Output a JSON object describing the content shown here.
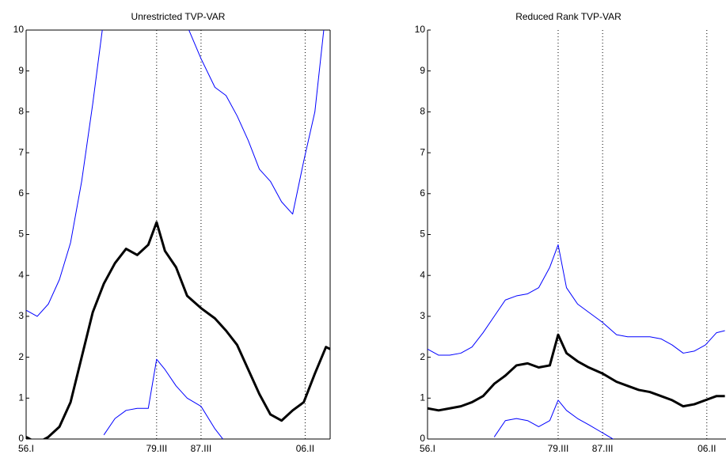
{
  "chart_data": [
    {
      "type": "line",
      "title": "Unrestricted TVP-VAR",
      "x": [
        1956,
        1958,
        1960,
        1962,
        1964,
        1966,
        1968,
        1970,
        1972,
        1974,
        1976,
        1978,
        1979.5,
        1981,
        1983,
        1985,
        1987.5,
        1990,
        1992,
        1994,
        1996,
        1998,
        2000,
        2002,
        2004,
        2006,
        2008,
        2010,
        2010.75
      ],
      "xlim": [
        1956,
        2010.75
      ],
      "xticks": [
        {
          "value": 1956,
          "label": "56.I"
        },
        {
          "value": 1979.5,
          "label": "79.III"
        },
        {
          "value": 1987.5,
          "label": "87.III"
        },
        {
          "value": 2006.25,
          "label": "06.II"
        }
      ],
      "ylim": [
        0,
        10
      ],
      "yticks": [
        0,
        1,
        2,
        3,
        4,
        5,
        6,
        7,
        8,
        9,
        10
      ],
      "series": [
        {
          "color": "#0000ff",
          "linewidth": 1,
          "values": [
            3.15,
            3.0,
            3.3,
            3.9,
            4.8,
            6.3,
            8.2,
            10.3,
            null,
            null,
            null,
            null,
            null,
            null,
            null,
            10.1,
            9.3,
            8.6,
            8.4,
            7.9,
            7.3,
            6.6,
            6.3,
            5.8,
            5.5,
            6.8,
            8.0,
            10.5,
            null
          ]
        },
        {
          "color": "#000000",
          "linewidth": 3,
          "values": [
            0.05,
            -0.1,
            0.05,
            0.3,
            0.9,
            2.0,
            3.1,
            3.8,
            4.3,
            4.65,
            4.5,
            4.75,
            5.3,
            4.6,
            4.2,
            3.5,
            3.2,
            2.95,
            2.65,
            2.3,
            1.7,
            1.1,
            0.6,
            0.45,
            0.7,
            0.9,
            1.6,
            2.25,
            2.2
          ]
        },
        {
          "color": "#0000ff",
          "linewidth": 1,
          "values": [
            null,
            null,
            null,
            null,
            null,
            null,
            null,
            0.1,
            0.5,
            0.7,
            0.75,
            0.75,
            1.95,
            1.7,
            1.3,
            1.0,
            0.8,
            0.25,
            -0.1,
            null,
            null,
            null,
            null,
            null,
            null,
            null,
            null,
            null,
            null
          ]
        }
      ]
    },
    {
      "type": "line",
      "title": "Reduced Rank TVP-VAR",
      "x": [
        1956,
        1958,
        1960,
        1962,
        1964,
        1966,
        1968,
        1970,
        1972,
        1974,
        1976,
        1978,
        1979.5,
        1981,
        1983,
        1985,
        1987.5,
        1990,
        1992,
        1994,
        1996,
        1998,
        2000,
        2002,
        2004,
        2006,
        2008,
        2009.5
      ],
      "xlim": [
        1956,
        2009.7
      ],
      "xticks": [
        {
          "value": 1956,
          "label": "56.I"
        },
        {
          "value": 1979.5,
          "label": "79.III"
        },
        {
          "value": 1987.5,
          "label": "87.III"
        },
        {
          "value": 2006.25,
          "label": "06.II"
        }
      ],
      "ylim": [
        0,
        10
      ],
      "yticks": [
        0,
        1,
        2,
        3,
        4,
        5,
        6,
        7,
        8,
        9,
        10
      ],
      "series": [
        {
          "color": "#0000ff",
          "linewidth": 1,
          "values": [
            2.2,
            2.05,
            2.05,
            2.1,
            2.25,
            2.6,
            3.0,
            3.4,
            3.5,
            3.55,
            3.7,
            4.2,
            4.75,
            3.7,
            3.3,
            3.1,
            2.85,
            2.55,
            2.5,
            2.5,
            2.5,
            2.45,
            2.3,
            2.1,
            2.15,
            2.3,
            2.6,
            2.65
          ]
        },
        {
          "color": "#000000",
          "linewidth": 3,
          "values": [
            0.75,
            0.7,
            0.75,
            0.8,
            0.9,
            1.05,
            1.35,
            1.55,
            1.8,
            1.85,
            1.75,
            1.8,
            2.55,
            2.1,
            1.9,
            1.75,
            1.6,
            1.4,
            1.3,
            1.2,
            1.15,
            1.05,
            0.95,
            0.8,
            0.85,
            0.95,
            1.05,
            1.05
          ]
        },
        {
          "color": "#0000ff",
          "linewidth": 1,
          "values": [
            null,
            null,
            null,
            null,
            null,
            null,
            0.05,
            0.45,
            0.5,
            0.45,
            0.3,
            0.45,
            0.95,
            0.7,
            0.5,
            0.35,
            0.15,
            -0.05,
            null,
            null,
            null,
            null,
            null,
            null,
            null,
            null,
            null,
            null
          ]
        }
      ]
    }
  ]
}
